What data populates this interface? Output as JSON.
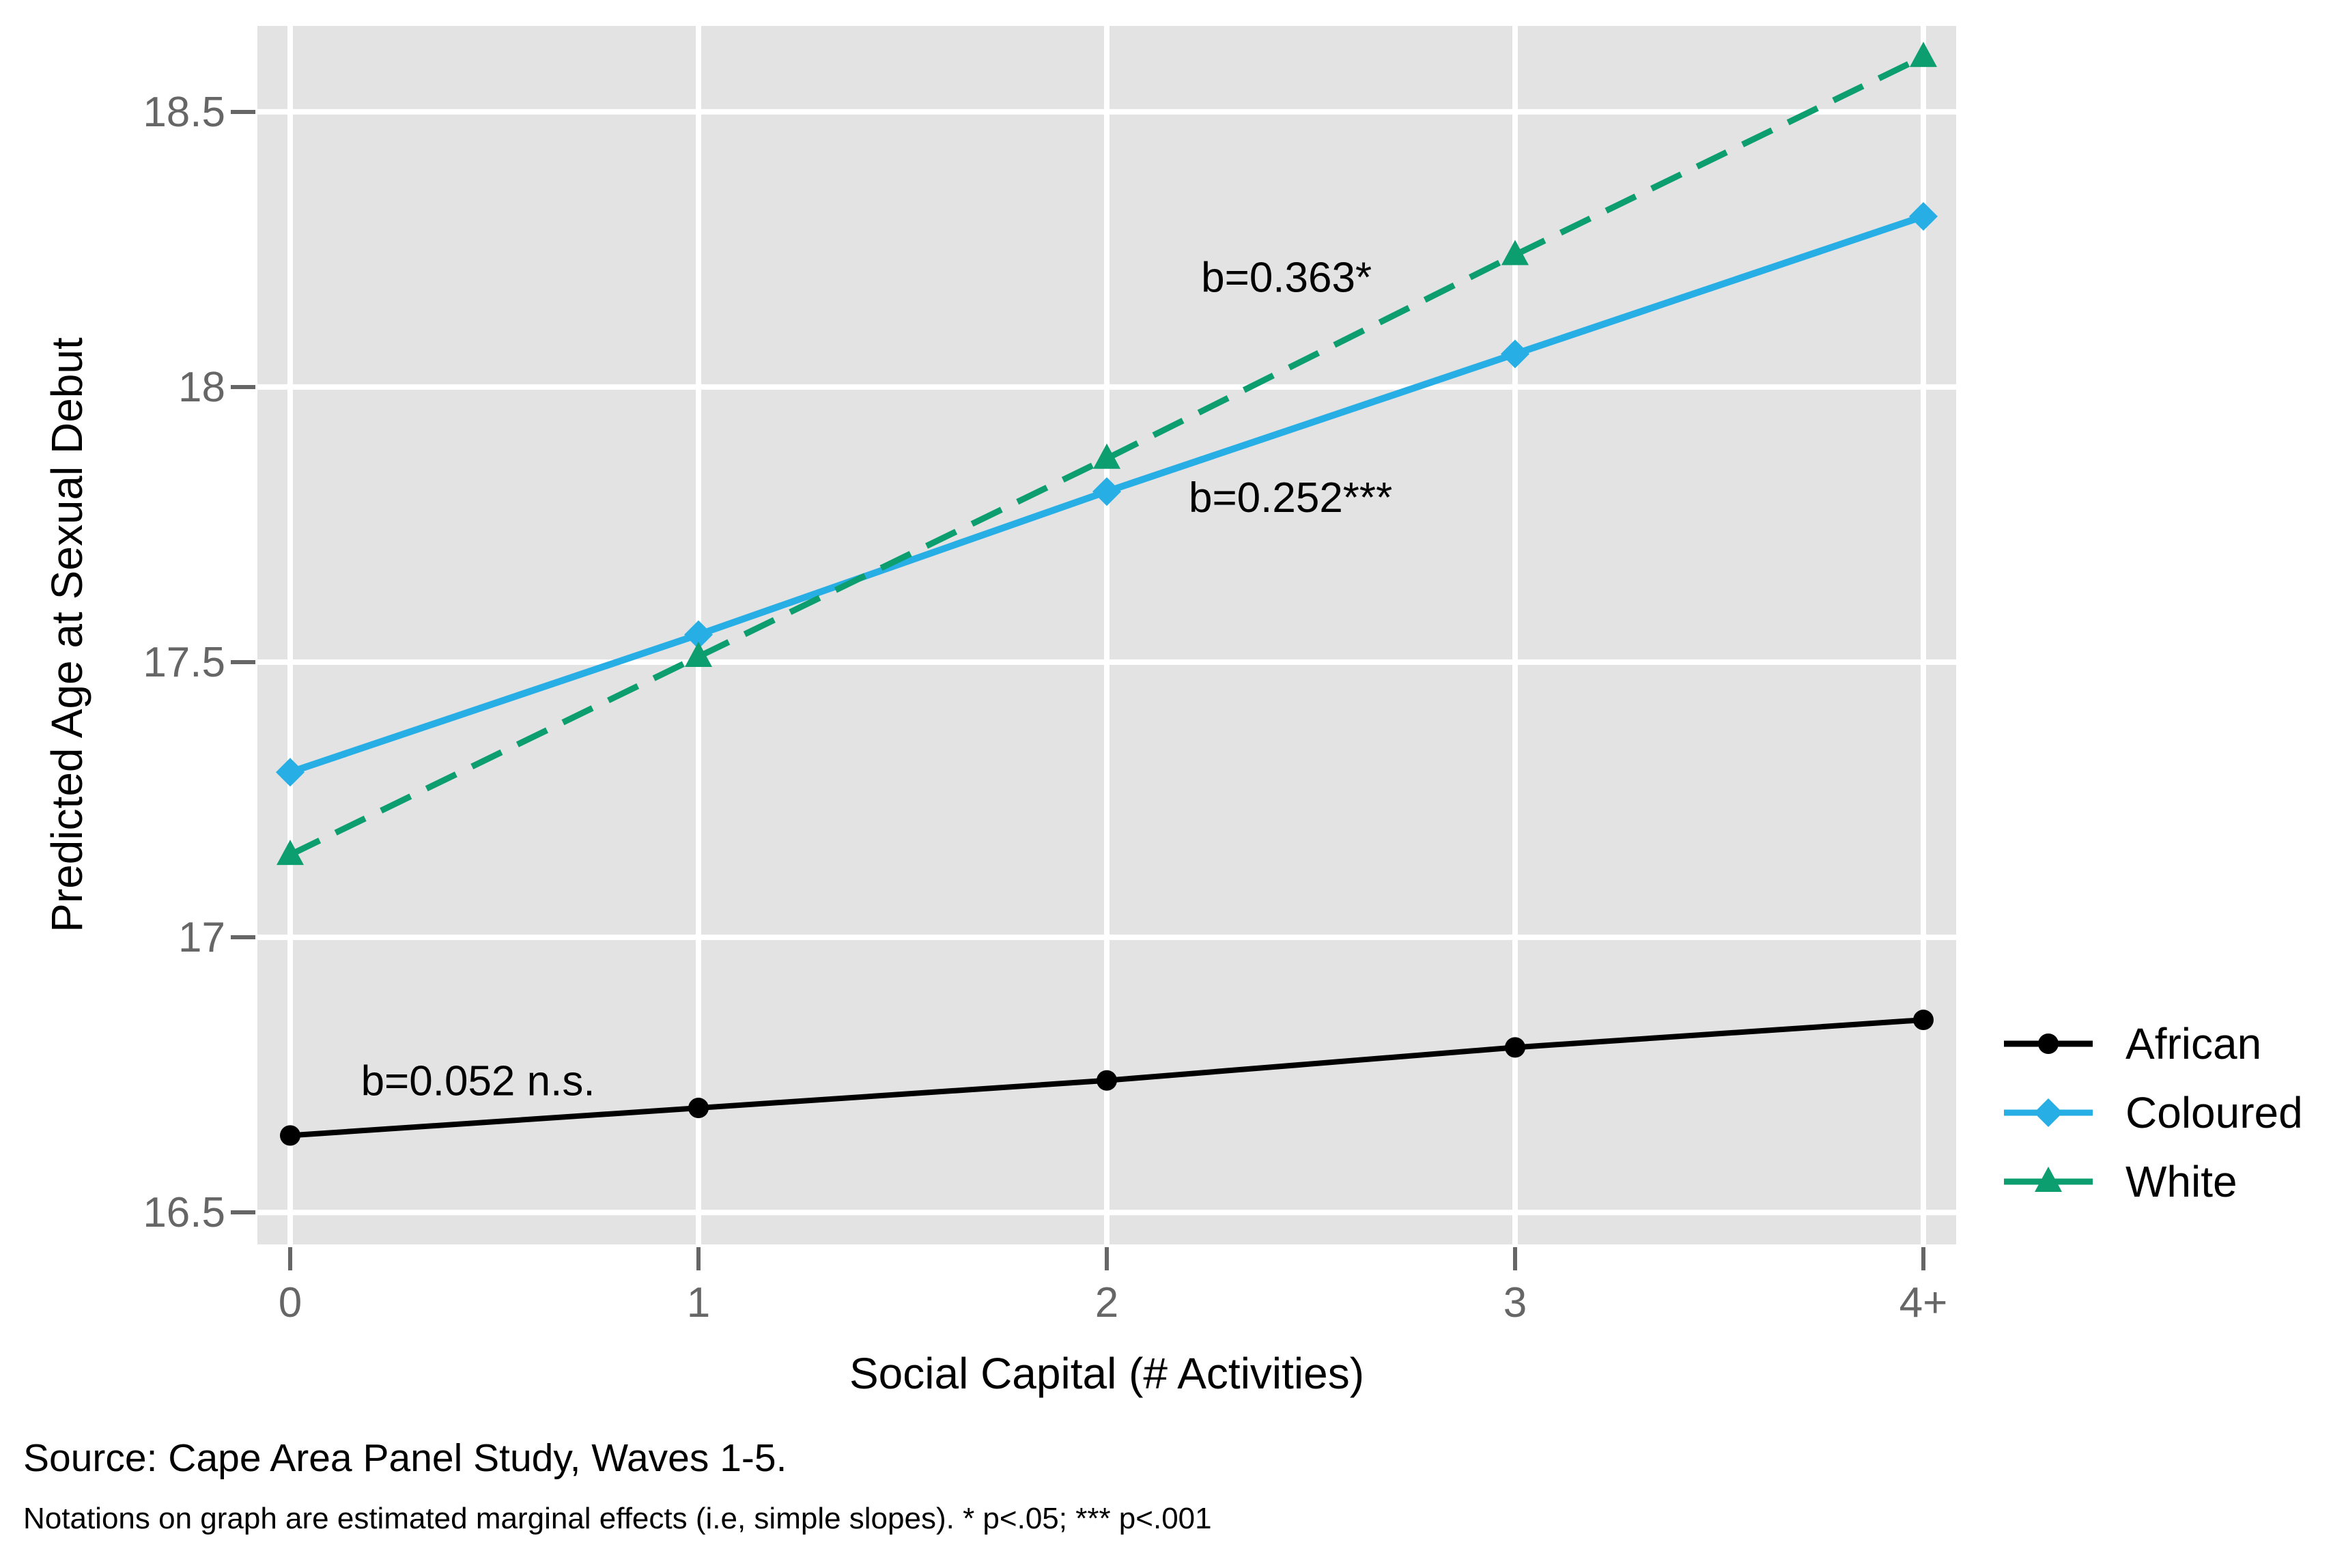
{
  "chart_data": {
    "type": "line",
    "title": "",
    "xlabel": "Social Capital (# Activities)",
    "ylabel": "Predicted Age at Sexual Debut",
    "categories": [
      "0",
      "1",
      "2",
      "3",
      "4+"
    ],
    "series": [
      {
        "name": "African",
        "values": [
          16.64,
          16.69,
          16.74,
          16.8,
          16.85
        ],
        "color": "#000000",
        "marker": "circle",
        "line_style": "solid",
        "line_width": 8,
        "slope_label": "b=0.052 n.s."
      },
      {
        "name": "Coloured",
        "values": [
          17.3,
          17.55,
          17.81,
          18.06,
          18.31
        ],
        "color": "#27AEE4",
        "marker": "diamond",
        "line_style": "solid",
        "line_width": 10,
        "slope_label": "b=0.252***"
      },
      {
        "name": "White",
        "values": [
          17.15,
          17.51,
          17.87,
          18.24,
          18.6
        ],
        "color": "#0D9E6F",
        "marker": "triangle",
        "line_style": "dashed",
        "line_width": 9,
        "slope_label": "b=0.363*"
      }
    ],
    "yticks": [
      {
        "value": 18.5,
        "label": "18.5"
      },
      {
        "value": 18.0,
        "label": "18"
      },
      {
        "value": 17.5,
        "label": "17.5"
      },
      {
        "value": 17.0,
        "label": "17"
      },
      {
        "value": 16.5,
        "label": "16.5"
      }
    ],
    "ylim": [
      16.442,
      18.656
    ],
    "grid": true,
    "legend_position": "right",
    "panel_background": "#E3E3E3",
    "gridline_color": "#ffffff",
    "tick_color": "#666666",
    "annotations": [
      {
        "text": "b=0.363*",
        "x": 2.44,
        "y": 18.2
      },
      {
        "text": "b=0.252***",
        "x": 2.45,
        "y": 17.8
      },
      {
        "text": "b=0.052 n.s.",
        "x": 0.46,
        "y": 16.74
      }
    ],
    "legend": [
      "African",
      "Coloured",
      "White"
    ]
  },
  "footer": {
    "source": "Source: Cape Area Panel Study, Waves 1-5.",
    "note": "Notations on graph are estimated marginal effects (i.e, simple slopes). * p<.05; *** p<.001"
  }
}
